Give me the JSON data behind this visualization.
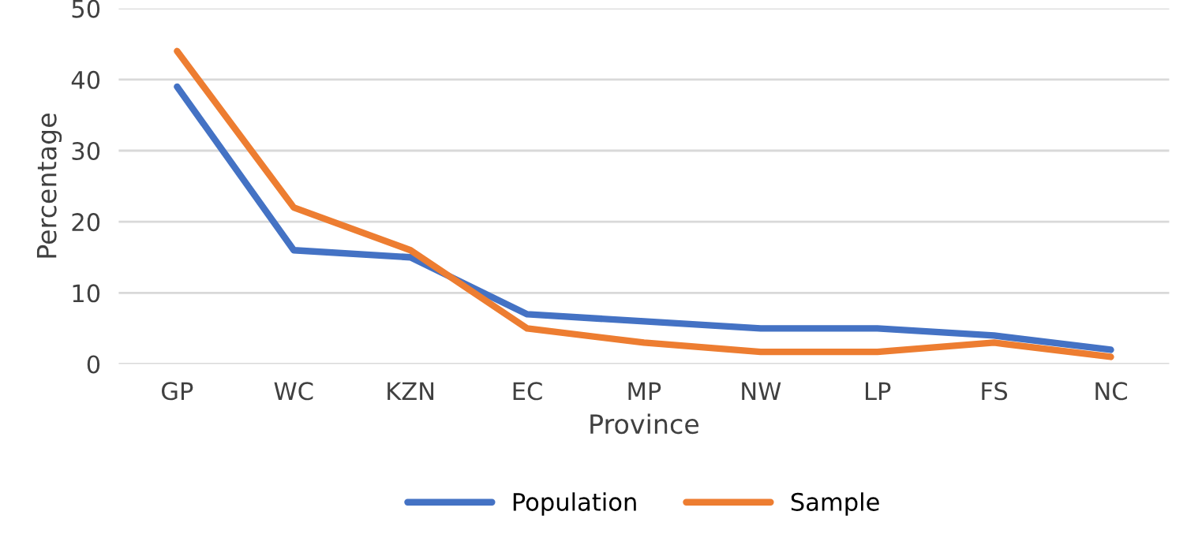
{
  "chart_data": {
    "type": "line",
    "xlabel": "Province",
    "ylabel": "Percentage",
    "categories": [
      "GP",
      "WC",
      "KZN",
      "EC",
      "MP",
      "NW",
      "LP",
      "FS",
      "NC"
    ],
    "series": [
      {
        "name": "Population",
        "color": "#4472c4",
        "values": [
          39,
          16,
          15,
          7,
          6,
          5,
          5,
          4,
          2
        ]
      },
      {
        "name": "Sample",
        "color": "#ed7d31",
        "values": [
          44,
          22,
          16,
          5,
          3,
          1.7,
          1.7,
          3,
          1
        ]
      }
    ],
    "ylim": [
      0,
      50
    ],
    "yticks": [
      0,
      10,
      20,
      30,
      40,
      50
    ],
    "grid": "y",
    "legend": "bottom",
    "line_style": "solid"
  }
}
